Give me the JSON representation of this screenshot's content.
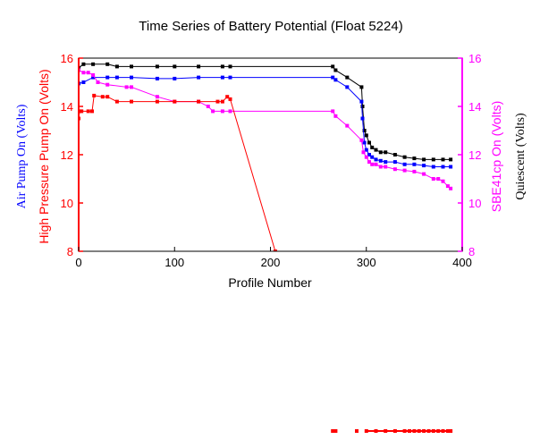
{
  "chart_data": {
    "type": "line",
    "title": "Time Series of Battery Potential (Float 5224)",
    "xlabel": "Profile Number",
    "xlim": [
      0,
      400
    ],
    "xticks": [
      "0",
      "100",
      "200",
      "300",
      "400"
    ],
    "left_axis": {
      "ylim": [
        8,
        16
      ],
      "yticks": [
        "8",
        "10",
        "12",
        "14",
        "16"
      ],
      "label_outer": "Air Pump On (Volts)",
      "label_inner": "High Pressure Pump On (Volts)",
      "outer_color": "#0000ff",
      "inner_color": "#ff0000"
    },
    "right_axis": {
      "ylim": [
        8,
        16
      ],
      "yticks": [
        "8",
        "10",
        "12",
        "14",
        "16"
      ],
      "label_inner": "SBE41cp On (Volts)",
      "label_outer": "Quiescent (Volts)",
      "inner_color": "#ff00ff",
      "outer_color": "#000000"
    },
    "series": [
      {
        "color": "#000000",
        "x": [
          0,
          5,
          15,
          30,
          40,
          55,
          82,
          100,
          125,
          150,
          158,
          265,
          268,
          280,
          295,
          296,
          298,
          300,
          303,
          306,
          310,
          315,
          320,
          330,
          340,
          350,
          360,
          370,
          380,
          388
        ],
        "y": [
          15.6,
          15.75,
          15.75,
          15.75,
          15.65,
          15.65,
          15.65,
          15.65,
          15.65,
          15.65,
          15.65,
          15.65,
          15.5,
          15.2,
          14.8,
          14.0,
          13.0,
          12.8,
          12.5,
          12.3,
          12.2,
          12.1,
          12.1,
          12.0,
          11.9,
          11.85,
          11.8,
          11.8,
          11.8,
          11.8
        ]
      },
      {
        "color": "#0000ff",
        "x": [
          0,
          5,
          15,
          30,
          40,
          55,
          82,
          100,
          125,
          150,
          158,
          265,
          268,
          280,
          295,
          296,
          298,
          300,
          303,
          306,
          310,
          315,
          320,
          330,
          340,
          350,
          360,
          370,
          380,
          388
        ],
        "y": [
          14.95,
          15.0,
          15.2,
          15.2,
          15.2,
          15.2,
          15.15,
          15.15,
          15.2,
          15.2,
          15.2,
          15.2,
          15.1,
          14.8,
          14.2,
          13.5,
          12.5,
          12.2,
          12.0,
          11.9,
          11.8,
          11.75,
          11.7,
          11.7,
          11.6,
          11.6,
          11.55,
          11.5,
          11.5,
          11.5
        ]
      },
      {
        "color": "#ff00ff",
        "x": [
          0,
          5,
          10,
          15,
          20,
          30,
          50,
          55,
          82,
          100,
          125,
          135,
          140,
          150,
          158,
          265,
          268,
          280,
          295,
          297,
          300,
          303,
          306,
          310,
          315,
          320,
          330,
          340,
          350,
          360,
          370,
          375,
          380,
          385,
          388
        ],
        "y": [
          15.5,
          15.4,
          15.4,
          15.3,
          15.0,
          14.9,
          14.8,
          14.8,
          14.4,
          14.2,
          14.2,
          14.0,
          13.8,
          13.8,
          13.8,
          13.8,
          13.6,
          13.2,
          12.6,
          12.1,
          11.9,
          11.7,
          11.6,
          11.6,
          11.5,
          11.5,
          11.4,
          11.35,
          11.3,
          11.2,
          11.0,
          11.0,
          10.9,
          10.7,
          10.6
        ]
      },
      {
        "color": "#ff0000",
        "x": [
          0,
          1,
          3,
          10,
          14,
          16,
          25,
          30,
          40,
          55,
          82,
          100,
          125,
          145,
          150,
          155,
          158,
          205
        ],
        "y": [
          13.5,
          13.8,
          13.8,
          13.8,
          13.8,
          14.45,
          14.4,
          14.4,
          14.2,
          14.2,
          14.2,
          14.2,
          14.2,
          14.2,
          14.2,
          14.4,
          14.3,
          8.0
        ]
      }
    ],
    "offscale_markers": {
      "color": "#ff0000",
      "x": [
        265,
        268,
        290,
        300,
        310,
        320,
        330,
        340,
        345,
        350,
        355,
        360,
        365,
        370,
        375,
        380,
        385,
        388
      ]
    }
  }
}
